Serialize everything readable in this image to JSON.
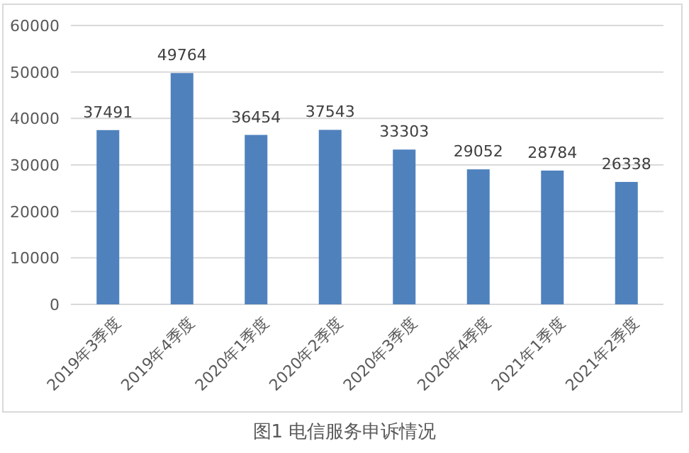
{
  "chart_data": {
    "type": "bar",
    "title": "图1  电信服务申诉情况",
    "categories": [
      "2019年3季度",
      "2019年4季度",
      "2020年1季度",
      "2020年2季度",
      "2020年3季度",
      "2020年4季度",
      "2021年1季度",
      "2021年2季度"
    ],
    "values": [
      37491,
      49764,
      36454,
      37543,
      33303,
      29052,
      28784,
      26338
    ],
    "color": "#4f81bd",
    "ylim": [
      0,
      60000
    ],
    "yticks": [
      0,
      10000,
      20000,
      30000,
      40000,
      50000,
      60000
    ],
    "grid": "y",
    "data_labels": true
  }
}
